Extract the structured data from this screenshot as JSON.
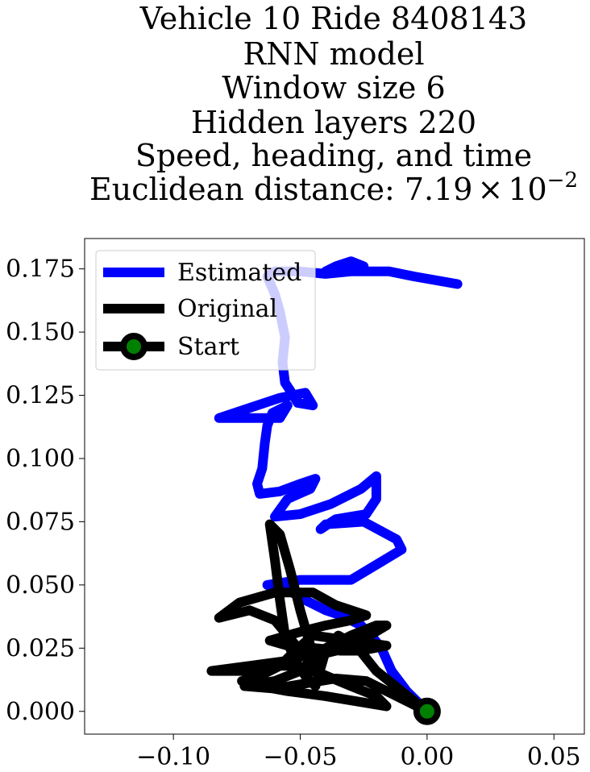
{
  "chart_data": {
    "type": "line",
    "title_lines": [
      "Vehicle 10 Ride 8408143",
      "RNN model",
      "Window size 6",
      "Hidden layers 220",
      "Speed, heading, and time"
    ],
    "title_distance_prefix": "Euclidean distance: 7.19",
    "title_distance_times": "×",
    "title_distance_base": "10",
    "title_distance_exponent": "−2",
    "xlim": [
      -0.135,
      0.062
    ],
    "ylim": [
      -0.009,
      0.187
    ],
    "xticks": [
      -0.1,
      -0.05,
      0.0,
      0.05
    ],
    "xtick_labels": [
      "−0.10",
      "−0.05",
      "0.00",
      "0.05"
    ],
    "yticks": [
      0.0,
      0.025,
      0.05,
      0.075,
      0.1,
      0.125,
      0.15,
      0.175
    ],
    "ytick_labels": [
      "0.000",
      "0.025",
      "0.050",
      "0.075",
      "0.100",
      "0.125",
      "0.150",
      "0.175"
    ],
    "grid": false,
    "legend_position": "top-left",
    "series": [
      {
        "name": "Estimated",
        "color": "#0000ff",
        "points": [
          [
            0.0,
            0.0
          ],
          [
            -0.008,
            0.008
          ],
          [
            -0.014,
            0.016
          ],
          [
            -0.018,
            0.025
          ],
          [
            -0.022,
            0.03
          ],
          [
            -0.026,
            0.034
          ],
          [
            -0.03,
            0.036
          ],
          [
            -0.034,
            0.038
          ],
          [
            -0.04,
            0.04
          ],
          [
            -0.048,
            0.044
          ],
          [
            -0.055,
            0.048
          ],
          [
            -0.063,
            0.05
          ],
          [
            -0.05,
            0.052
          ],
          [
            -0.03,
            0.052
          ],
          [
            -0.02,
            0.058
          ],
          [
            -0.01,
            0.064
          ],
          [
            -0.012,
            0.068
          ],
          [
            -0.025,
            0.075
          ],
          [
            -0.04,
            0.074
          ],
          [
            -0.042,
            0.072
          ],
          [
            -0.036,
            0.076
          ],
          [
            -0.024,
            0.078
          ],
          [
            -0.02,
            0.084
          ],
          [
            -0.02,
            0.093
          ],
          [
            -0.026,
            0.088
          ],
          [
            -0.038,
            0.082
          ],
          [
            -0.05,
            0.078
          ],
          [
            -0.06,
            0.077
          ],
          [
            -0.055,
            0.084
          ],
          [
            -0.046,
            0.088
          ],
          [
            -0.044,
            0.092
          ],
          [
            -0.05,
            0.09
          ],
          [
            -0.058,
            0.087
          ],
          [
            -0.066,
            0.086
          ],
          [
            -0.067,
            0.09
          ],
          [
            -0.065,
            0.096
          ],
          [
            -0.064,
            0.106
          ],
          [
            -0.063,
            0.113
          ],
          [
            -0.061,
            0.118
          ],
          [
            -0.055,
            0.121
          ],
          [
            -0.058,
            0.116
          ],
          [
            -0.073,
            0.116
          ],
          [
            -0.082,
            0.116
          ],
          [
            -0.07,
            0.12
          ],
          [
            -0.058,
            0.124
          ],
          [
            -0.048,
            0.126
          ],
          [
            -0.045,
            0.121
          ],
          [
            -0.051,
            0.122
          ],
          [
            -0.054,
            0.127
          ],
          [
            -0.056,
            0.13
          ],
          [
            -0.057,
            0.138
          ],
          [
            -0.056,
            0.148
          ],
          [
            -0.058,
            0.158
          ],
          [
            -0.06,
            0.165
          ],
          [
            -0.063,
            0.172
          ],
          [
            -0.06,
            0.174
          ],
          [
            -0.05,
            0.174
          ],
          [
            -0.04,
            0.173
          ],
          [
            -0.03,
            0.174
          ],
          [
            -0.025,
            0.176
          ],
          [
            -0.03,
            0.178
          ],
          [
            -0.036,
            0.176
          ],
          [
            -0.04,
            0.174
          ],
          [
            -0.03,
            0.174
          ],
          [
            -0.015,
            0.174
          ],
          [
            -0.005,
            0.172
          ],
          [
            0.012,
            0.169
          ]
        ]
      },
      {
        "name": "Original",
        "color": "#000000",
        "points": [
          [
            0.0,
            0.0
          ],
          [
            -0.01,
            0.008
          ],
          [
            -0.02,
            0.016
          ],
          [
            -0.028,
            0.026
          ],
          [
            -0.035,
            0.03
          ],
          [
            -0.04,
            0.024
          ],
          [
            -0.044,
            0.01
          ],
          [
            -0.048,
            0.014
          ],
          [
            -0.052,
            0.02
          ],
          [
            -0.056,
            0.03
          ],
          [
            -0.058,
            0.044
          ],
          [
            -0.06,
            0.06
          ],
          [
            -0.062,
            0.074
          ],
          [
            -0.058,
            0.07
          ],
          [
            -0.054,
            0.056
          ],
          [
            -0.05,
            0.04
          ],
          [
            -0.046,
            0.026
          ],
          [
            -0.044,
            0.018
          ],
          [
            -0.05,
            0.024
          ],
          [
            -0.06,
            0.036
          ],
          [
            -0.07,
            0.04
          ],
          [
            -0.082,
            0.037
          ],
          [
            -0.074,
            0.043
          ],
          [
            -0.06,
            0.047
          ],
          [
            -0.045,
            0.047
          ],
          [
            -0.036,
            0.042
          ],
          [
            -0.024,
            0.038
          ],
          [
            -0.03,
            0.036
          ],
          [
            -0.04,
            0.034
          ],
          [
            -0.048,
            0.032
          ],
          [
            -0.055,
            0.03
          ],
          [
            -0.062,
            0.028
          ],
          [
            -0.055,
            0.026
          ],
          [
            -0.044,
            0.025
          ],
          [
            -0.034,
            0.024
          ],
          [
            -0.026,
            0.024
          ],
          [
            -0.016,
            0.026
          ],
          [
            -0.03,
            0.028
          ],
          [
            -0.045,
            0.03
          ],
          [
            -0.052,
            0.024
          ],
          [
            -0.058,
            0.018
          ],
          [
            -0.066,
            0.014
          ],
          [
            -0.073,
            0.012
          ],
          [
            -0.066,
            0.01
          ],
          [
            -0.055,
            0.008
          ],
          [
            -0.04,
            0.006
          ],
          [
            -0.028,
            0.004
          ],
          [
            -0.016,
            0.002
          ],
          [
            -0.02,
            0.006
          ],
          [
            -0.03,
            0.01
          ],
          [
            -0.042,
            0.015
          ],
          [
            -0.052,
            0.018
          ],
          [
            -0.062,
            0.018
          ],
          [
            -0.072,
            0.016
          ],
          [
            -0.085,
            0.016
          ],
          [
            -0.07,
            0.018
          ],
          [
            -0.055,
            0.02
          ],
          [
            -0.042,
            0.024
          ],
          [
            -0.03,
            0.03
          ],
          [
            -0.02,
            0.034
          ],
          [
            -0.016,
            0.034
          ],
          [
            -0.026,
            0.028
          ],
          [
            -0.036,
            0.024
          ],
          [
            -0.044,
            0.022
          ],
          [
            -0.05,
            0.016
          ],
          [
            -0.06,
            0.012
          ],
          [
            -0.072,
            0.01
          ],
          [
            -0.06,
            0.009
          ],
          [
            -0.048,
            0.011
          ],
          [
            -0.036,
            0.013
          ],
          [
            -0.024,
            0.012
          ],
          [
            -0.012,
            0.006
          ],
          [
            0.0,
            0.0
          ]
        ]
      },
      {
        "name": "Start",
        "marker_face_color": "#008000",
        "marker_edge_color": "#000000",
        "points": [
          [
            0.0,
            0.0
          ]
        ]
      }
    ]
  }
}
